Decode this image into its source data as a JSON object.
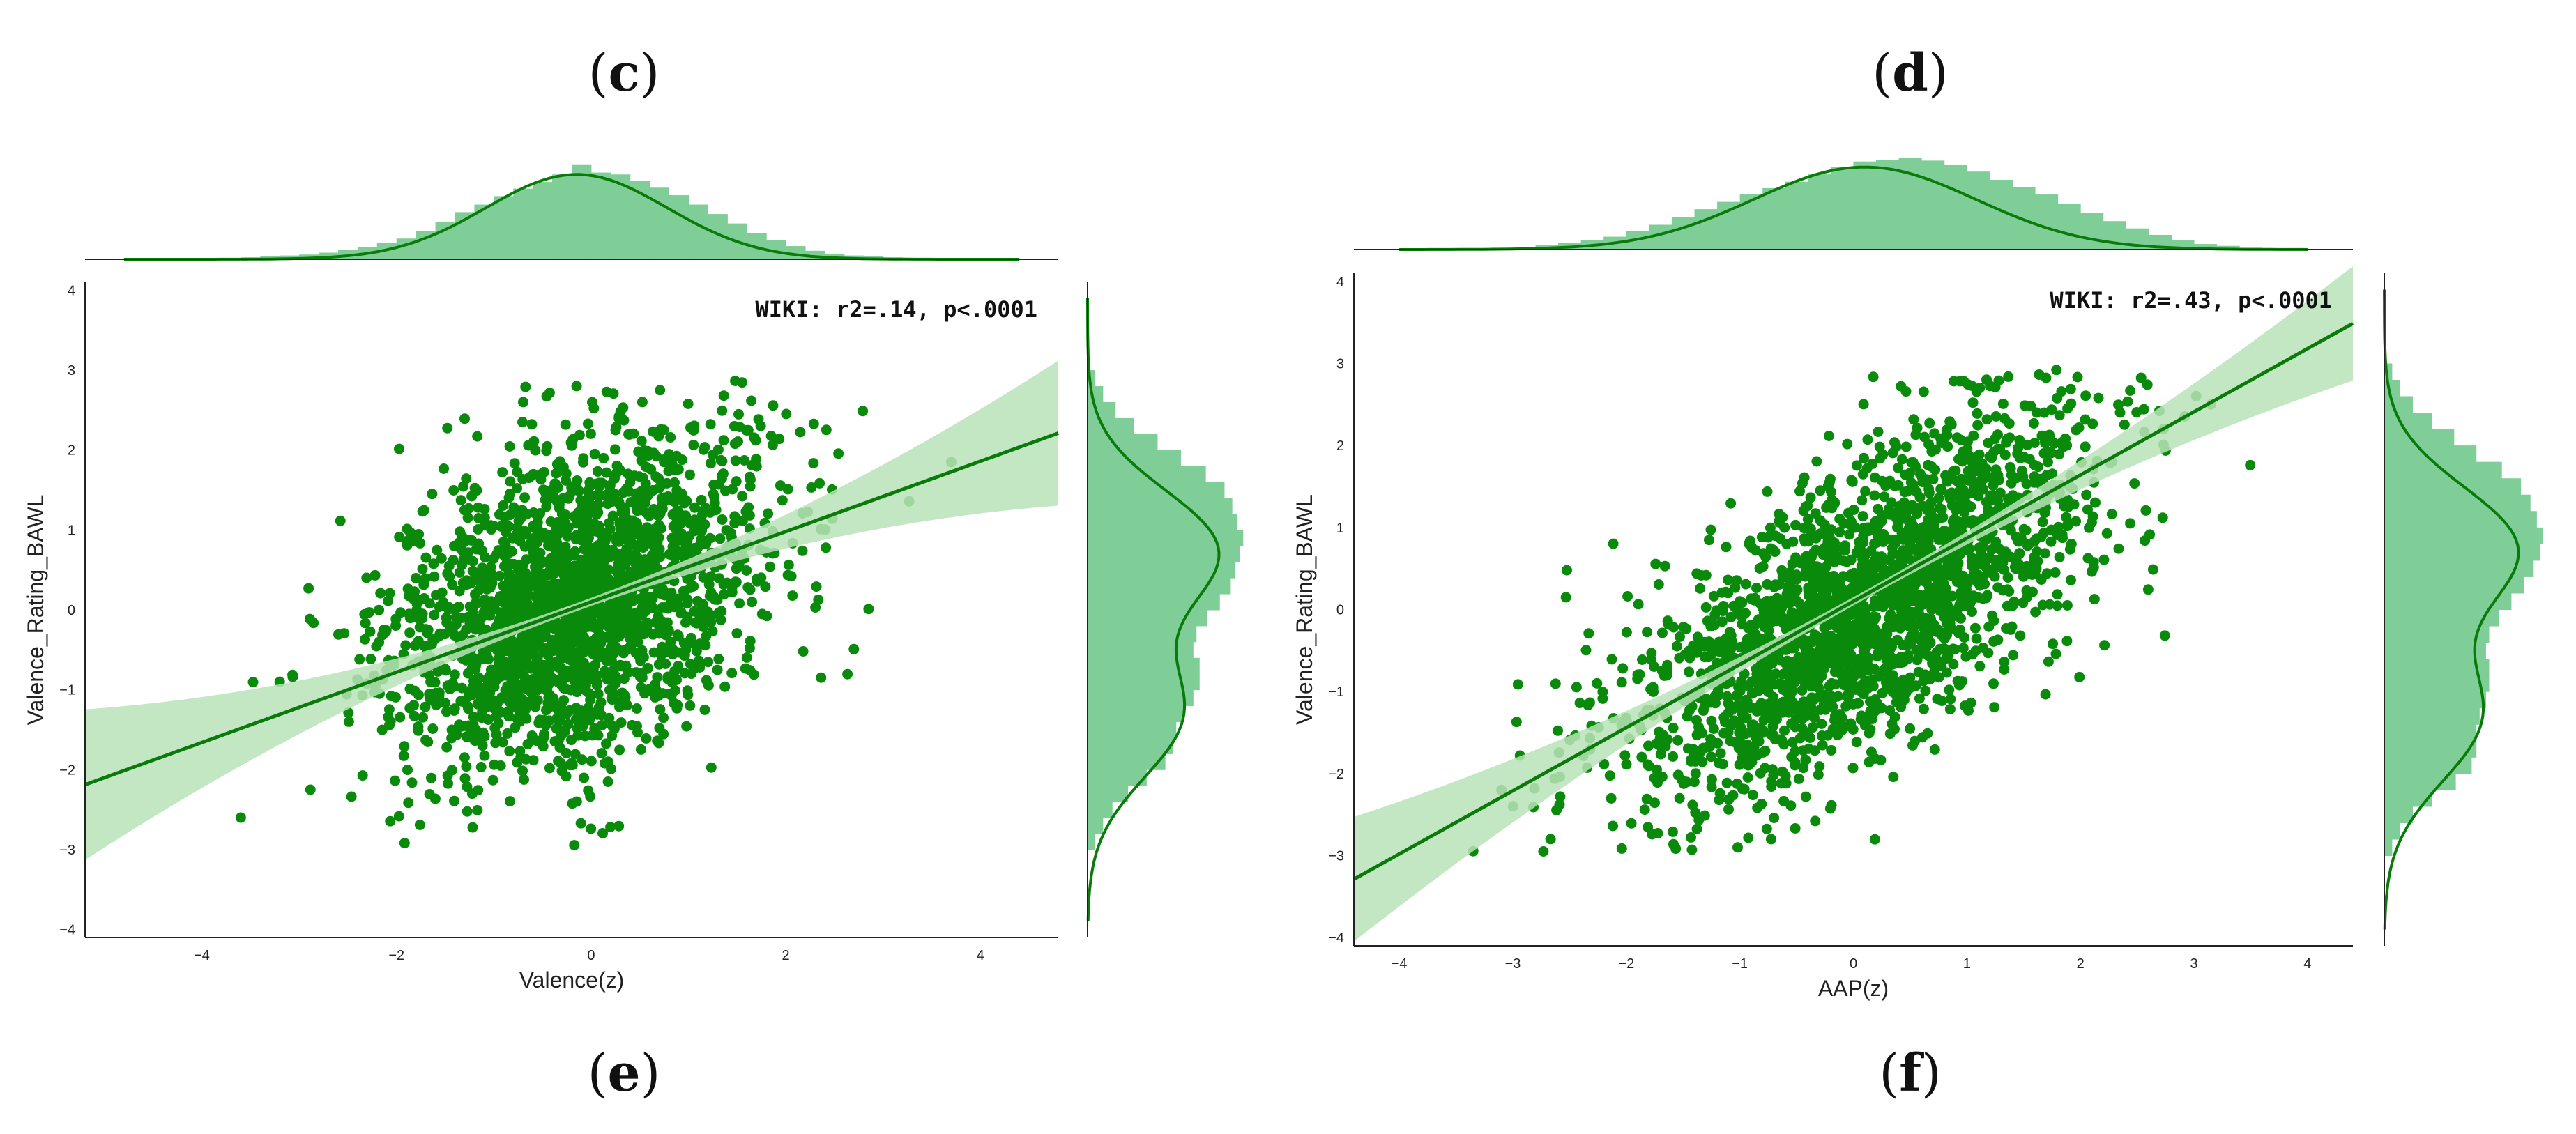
{
  "panel_labels": {
    "top_left": "c",
    "top_right": "d",
    "bottom_left": "e",
    "bottom_right": "f"
  },
  "colors": {
    "points": "#0a8a0a",
    "regression_line": "#0a7a0a",
    "ci_band": "#b9e3b9",
    "hist_fill": "#7fcd97",
    "kde_line": "#0a7a0a",
    "axis": "#222222"
  },
  "chart_data": [
    {
      "type": "scatter",
      "title": "",
      "xlabel": "Valence(z)",
      "ylabel": "Valence_Rating_BAWL",
      "annotation": "WIKI: r2=.14, p<.0001",
      "xlim": [
        -5.2,
        4.8
      ],
      "ylim": [
        -4.1,
        4.1
      ],
      "xticks": [
        -4,
        -2,
        0,
        2,
        4
      ],
      "yticks": [
        -4,
        -3,
        -2,
        -1,
        0,
        1,
        2,
        3,
        4
      ],
      "n_points_approx": 2200,
      "point_cloud": {
        "x_mean": -0.15,
        "x_sd": 0.95,
        "y_mean": 0.1,
        "y_sd": 1.05,
        "correlation": 0.37
      },
      "regression": {
        "slope": 0.44,
        "intercept": 0.1
      },
      "extreme_points": [
        {
          "x": 3.7,
          "y": 1.85
        },
        {
          "x": -3.6,
          "y": -2.6
        },
        {
          "x": -3.2,
          "y": -0.9
        }
      ],
      "marginal_x_hist": {
        "bins_from": -3.6,
        "bin_width": 0.2,
        "relative_heights": [
          0.02,
          0.03,
          0.04,
          0.05,
          0.07,
          0.1,
          0.13,
          0.17,
          0.22,
          0.3,
          0.4,
          0.5,
          0.58,
          0.67,
          0.75,
          0.82,
          0.9,
          1.0,
          0.92,
          0.9,
          0.83,
          0.76,
          0.68,
          0.58,
          0.48,
          0.38,
          0.28,
          0.2,
          0.14,
          0.09,
          0.06,
          0.04,
          0.03,
          0.02,
          0.01
        ]
      },
      "marginal_y_hist": {
        "bins_from": -3.0,
        "bin_width": 0.2,
        "relative_heights": [
          0.05,
          0.1,
          0.16,
          0.26,
          0.38,
          0.5,
          0.55,
          0.57,
          0.62,
          0.68,
          0.72,
          0.72,
          0.68,
          0.7,
          0.77,
          0.85,
          0.92,
          0.95,
          0.98,
          1.0,
          0.96,
          0.93,
          0.88,
          0.76,
          0.6,
          0.45,
          0.3,
          0.18,
          0.1,
          0.05
        ]
      }
    },
    {
      "type": "scatter",
      "title": "",
      "xlabel": "AAP(z)",
      "ylabel": "Valence_Rating_BAWL",
      "annotation": "WIKI: r2=.43, p<.0001",
      "xlim": [
        -4.4,
        4.4
      ],
      "ylim": [
        -4.1,
        4.1
      ],
      "xticks": [
        -4,
        -3,
        -2,
        -1,
        0,
        1,
        2,
        3,
        4
      ],
      "yticks": [
        -4,
        -3,
        -2,
        -1,
        0,
        1,
        2,
        3,
        4
      ],
      "n_points_approx": 2200,
      "point_cloud": {
        "x_mean": 0.1,
        "x_sd": 1.0,
        "y_mean": 0.0,
        "y_sd": 1.15,
        "correlation": 0.66
      },
      "regression": {
        "slope": 0.77,
        "intercept": 0.1
      },
      "extreme_points": [
        {
          "x": 3.15,
          "y": 2.5
        },
        {
          "x": -3.1,
          "y": -2.2
        }
      ],
      "marginal_x_hist": {
        "bins_from": -3.2,
        "bin_width": 0.2,
        "relative_heights": [
          0.02,
          0.03,
          0.05,
          0.07,
          0.1,
          0.14,
          0.2,
          0.27,
          0.35,
          0.44,
          0.52,
          0.6,
          0.67,
          0.74,
          0.82,
          0.9,
          0.96,
          0.98,
          1.0,
          0.97,
          0.92,
          0.85,
          0.76,
          0.68,
          0.6,
          0.5,
          0.4,
          0.31,
          0.23,
          0.16,
          0.1,
          0.06,
          0.04,
          0.02,
          0.01
        ]
      },
      "marginal_y_hist": {
        "bins_from": -3.0,
        "bin_width": 0.2,
        "relative_heights": [
          0.05,
          0.1,
          0.18,
          0.3,
          0.45,
          0.55,
          0.58,
          0.58,
          0.6,
          0.64,
          0.66,
          0.66,
          0.64,
          0.66,
          0.72,
          0.8,
          0.88,
          0.94,
          0.98,
          1.0,
          0.96,
          0.92,
          0.86,
          0.74,
          0.58,
          0.44,
          0.3,
          0.18,
          0.1,
          0.05
        ]
      }
    }
  ]
}
